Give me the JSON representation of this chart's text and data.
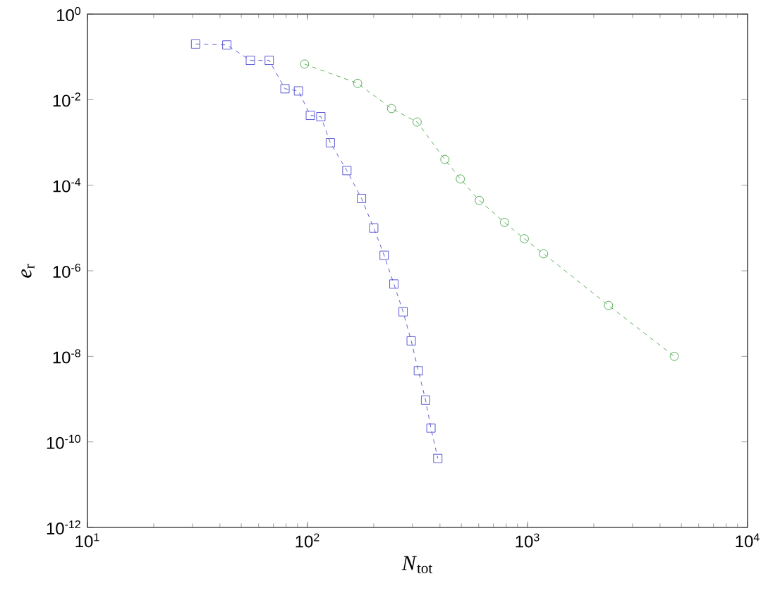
{
  "chart_data": {
    "type": "line",
    "xlabel": "*N*$_{tot}$",
    "ylabel": "*e*$_{r}$",
    "log": "xy",
    "line_style": "dashed",
    "xlim": [
      10,
      10000
    ],
    "ylim": [
      1e-12,
      1
    ],
    "xticks": [
      {
        "value": 10,
        "label": "10$^{1}$"
      },
      {
        "value": 100,
        "label": "10$^{2}$"
      },
      {
        "value": 1000,
        "label": "10$^{3}$"
      },
      {
        "value": 10000,
        "label": "10$^{4}$"
      }
    ],
    "yticks": [
      {
        "value": 1e-12,
        "label": "10$^{-12}$"
      },
      {
        "value": 1e-10,
        "label": "10$^{-10}$"
      },
      {
        "value": 1e-08,
        "label": "10$^{-8}$"
      },
      {
        "value": 1e-06,
        "label": "10$^{-6}$"
      },
      {
        "value": 0.0001,
        "label": "10$^{-4}$"
      },
      {
        "value": 0.01,
        "label": "10$^{-2}$"
      },
      {
        "value": 1,
        "label": "10$^{0}$"
      }
    ],
    "series": [
      {
        "color": "#3333cc",
        "marker": "square",
        "x": [
          31,
          43,
          55,
          67,
          79,
          91,
          103,
          115,
          127,
          151,
          176,
          200,
          223,
          247,
          272,
          296,
          319,
          344,
          364,
          391
        ],
        "values": [
          0.2,
          0.19,
          0.083,
          0.083,
          0.018,
          0.016,
          0.0043,
          0.004,
          0.00098,
          0.00022,
          4.9e-05,
          1e-05,
          2.3e-06,
          4.9e-07,
          1.1e-07,
          2.3e-08,
          4.6e-09,
          9.5e-10,
          2.1e-10,
          4.1e-11
        ]
      },
      {
        "color": "#339933",
        "marker": "circle",
        "x": [
          97,
          169,
          241,
          315,
          421,
          495,
          604,
          786,
          967,
          1183,
          2334,
          4645
        ],
        "values": [
          0.068,
          0.024,
          0.0062,
          0.003,
          0.0004,
          0.00014,
          4.4e-05,
          1.35e-05,
          5.6e-06,
          2.5e-06,
          1.55e-07,
          1e-08
        ]
      }
    ]
  }
}
